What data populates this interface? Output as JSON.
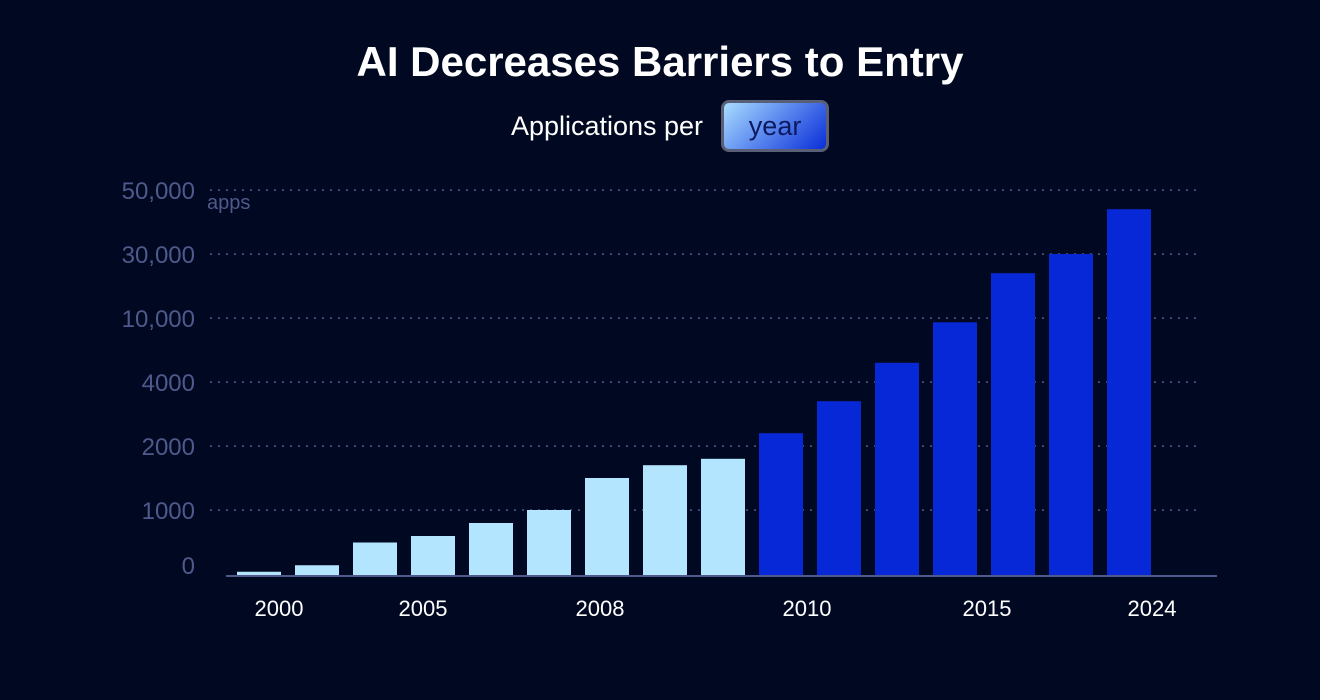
{
  "chart_data": {
    "type": "bar",
    "title": "AI Decreases Barriers to Entry",
    "subtitle_prefix": "Applications per",
    "period_selector": "year",
    "ylabel": "apps",
    "xlabel": "",
    "y_ticks": [
      "0",
      "1000",
      "2000",
      "4000",
      "10,000",
      "30,000",
      "50,000"
    ],
    "y_tick_values": [
      0,
      1000,
      2000,
      4000,
      10000,
      30000,
      50000
    ],
    "ylim": [
      0,
      50000
    ],
    "y_scale": "piecewise (non-linear)",
    "grid": true,
    "x_tick_labels": [
      "2000",
      "2005",
      "2008",
      "2010",
      "2015",
      "2024"
    ],
    "values": [
      50,
      150,
      500,
      600,
      800,
      1000,
      1500,
      1700,
      1800,
      2400,
      3400,
      5800,
      9600,
      24000,
      30000,
      44000
    ],
    "highlight_from_index": 9,
    "colors": {
      "early": "#b3e5ff",
      "recent": "#0628d6",
      "background": "#010821",
      "axis": "#4f5a8c"
    }
  }
}
